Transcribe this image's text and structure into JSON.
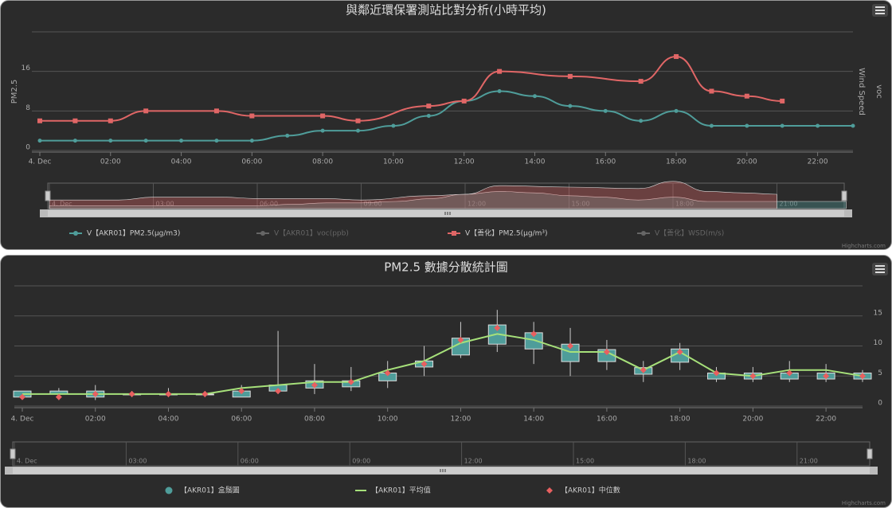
{
  "chart_data": [
    {
      "type": "line",
      "title": "與鄰近環保署測站比對分析(小時平均)",
      "yaxis_title": "PM2.5",
      "y2axis_titles": [
        "Wind Speed",
        "voc"
      ],
      "x": [
        0,
        1,
        2,
        3,
        4,
        5,
        6,
        7,
        8,
        9,
        10,
        11,
        12,
        13,
        14,
        15,
        16,
        17,
        18,
        19,
        20,
        21,
        22,
        23
      ],
      "xlim": [
        0,
        23
      ],
      "xticks": [
        {
          "value": 0,
          "label": "4. Dec"
        },
        {
          "value": 2,
          "label": "02:00"
        },
        {
          "value": 4,
          "label": "04:00"
        },
        {
          "value": 6,
          "label": "06:00"
        },
        {
          "value": 8,
          "label": "08:00"
        },
        {
          "value": 10,
          "label": "10:00"
        },
        {
          "value": 12,
          "label": "12:00"
        },
        {
          "value": 14,
          "label": "14:00"
        },
        {
          "value": 16,
          "label": "16:00"
        },
        {
          "value": 18,
          "label": "18:00"
        },
        {
          "value": 20,
          "label": "20:00"
        },
        {
          "value": 22,
          "label": "22:00"
        }
      ],
      "ylim": [
        0,
        24
      ],
      "yticks": [
        0,
        8,
        16
      ],
      "grid": true,
      "series": [
        {
          "name": "V【AKR01】PM2.5(μg/m3)",
          "color": "#4f9d9a",
          "marker": "circle",
          "values": [
            2,
            2,
            2,
            2,
            2,
            2,
            2,
            3,
            4,
            4,
            5,
            7,
            10,
            12,
            11,
            9,
            8,
            6,
            8,
            5,
            5,
            5,
            5,
            5
          ]
        },
        {
          "name": "V【AKR01】voc(ppb)",
          "color": "#777777",
          "visible": false
        },
        {
          "name": "V【善化】PM2.5(μg/m³)",
          "color": "#e06666",
          "marker": "square",
          "x": [
            0,
            1,
            2,
            3,
            5,
            6,
            8,
            9,
            11,
            12,
            13,
            15,
            17,
            18,
            19,
            20,
            21
          ],
          "values": [
            6,
            6,
            6,
            8,
            8,
            7,
            7,
            6,
            9,
            10,
            16,
            15,
            14,
            19,
            12,
            11,
            10
          ]
        },
        {
          "name": "V【善化】WSD(m/s)",
          "color": "#777777",
          "visible": false
        }
      ],
      "navigator_labels": [
        "4. Dec",
        "03:00",
        "06:00",
        "09:00",
        "12:00",
        "15:00",
        "18:00",
        "21:00"
      ],
      "credits": "Highcharts.com"
    },
    {
      "type": "boxplot",
      "title": "PM2.5 數據分散統計圖",
      "x": [
        0,
        1,
        2,
        3,
        4,
        5,
        6,
        7,
        8,
        9,
        10,
        11,
        12,
        13,
        14,
        15,
        16,
        17,
        18,
        19,
        20,
        21,
        22,
        23
      ],
      "xlim": [
        0,
        23
      ],
      "xticks": [
        {
          "value": 0,
          "label": "4. Dec"
        },
        {
          "value": 2,
          "label": "02:00"
        },
        {
          "value": 4,
          "label": "04:00"
        },
        {
          "value": 6,
          "label": "06:00"
        },
        {
          "value": 8,
          "label": "08:00"
        },
        {
          "value": 10,
          "label": "10:00"
        },
        {
          "value": 12,
          "label": "12:00"
        },
        {
          "value": 14,
          "label": "14:00"
        },
        {
          "value": 16,
          "label": "16:00"
        },
        {
          "value": 18,
          "label": "18:00"
        },
        {
          "value": 20,
          "label": "20:00"
        },
        {
          "value": 22,
          "label": "22:00"
        }
      ],
      "ylim": [
        0,
        20
      ],
      "yticks": [
        0,
        5,
        10,
        15
      ],
      "grid": true,
      "series": [
        {
          "name": "【AKR01】盒鬚圖",
          "color": "#4f9d9a",
          "low": [
            1.5,
            1,
            1,
            1.5,
            1.5,
            1.5,
            1.5,
            2,
            2,
            2.5,
            3,
            5,
            8,
            9,
            7,
            5,
            6,
            4,
            6,
            4,
            4,
            4,
            4,
            4
          ],
          "q1": [
            1.5,
            2,
            1.5,
            2,
            2,
            2,
            1.5,
            2.5,
            3,
            3.2,
            4.2,
            6.5,
            8.5,
            10.3,
            9.5,
            7.4,
            7.4,
            5.3,
            7.3,
            4.5,
            4.5,
            4.5,
            4.5,
            4.5
          ],
          "q3": [
            2.5,
            2.5,
            2.5,
            2,
            2,
            2,
            2.5,
            3.5,
            4.2,
            4.2,
            5.5,
            7.5,
            11.3,
            13.5,
            12.2,
            10.3,
            9.4,
            6.4,
            9.5,
            5.5,
            5.5,
            5.5,
            5.5,
            5.5
          ],
          "high": [
            2.5,
            3,
            3.5,
            2.5,
            3,
            2.5,
            3.5,
            12.5,
            7,
            6.5,
            7.5,
            10,
            14,
            16,
            14,
            13,
            11,
            7.5,
            10.5,
            6.5,
            6.5,
            7.5,
            7,
            6
          ]
        },
        {
          "name": "【AKR01】平均值",
          "color": "#a6e07a",
          "values": [
            2,
            2,
            2,
            2,
            2,
            2,
            3,
            3.5,
            4,
            4,
            6,
            7.5,
            10.5,
            12,
            11,
            9,
            9,
            6,
            9,
            5.5,
            5,
            6,
            6,
            5
          ]
        },
        {
          "name": "【AKR01】中位數",
          "color": "#e86060",
          "values": [
            1.5,
            1.5,
            2,
            2,
            2,
            2,
            2.5,
            2.5,
            3.5,
            4,
            5.5,
            7,
            11,
            13,
            12,
            10,
            9,
            6,
            9,
            5.5,
            5,
            5.5,
            5,
            5
          ]
        }
      ],
      "navigator_labels": [
        "4. Dec",
        "03:00",
        "06:00",
        "09:00",
        "12:00",
        "15:00",
        "18:00",
        "21:00"
      ],
      "credits": "Highcharts.com"
    }
  ]
}
